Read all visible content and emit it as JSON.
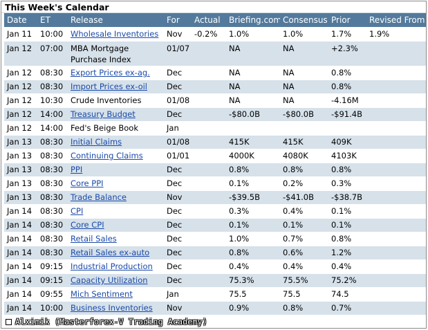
{
  "title": "This Week's Calendar",
  "columns": [
    "Date",
    "ET",
    "Release",
    "For",
    "Actual",
    "Briefing.com",
    "Consensus",
    "Prior",
    "Revised From"
  ],
  "rows": [
    {
      "date": "Jan 11",
      "et": "10:00",
      "release": "Wholesale Inventories",
      "link": true,
      "for": "Nov",
      "actual": "-0.2%",
      "briefing": "1.0%",
      "consensus": "1.0%",
      "prior": "1.7%",
      "revised": "1.9%"
    },
    {
      "date": "Jan 12",
      "et": "07:00",
      "release": "MBA Mortgage Purchase Index",
      "link": false,
      "for": "01/07",
      "actual": "",
      "briefing": "NA",
      "consensus": "NA",
      "prior": "+2.3%",
      "revised": ""
    },
    {
      "date": "Jan 12",
      "et": "08:30",
      "release": "Export Prices ex-ag.",
      "link": true,
      "for": "Dec",
      "actual": "",
      "briefing": "NA",
      "consensus": "NA",
      "prior": "0.8%",
      "revised": ""
    },
    {
      "date": "Jan 12",
      "et": "08:30",
      "release": "Import Prices ex-oil",
      "link": true,
      "for": "Dec",
      "actual": "",
      "briefing": "NA",
      "consensus": "NA",
      "prior": "0.8%",
      "revised": ""
    },
    {
      "date": "Jan 12",
      "et": "10:30",
      "release": "Crude Inventories",
      "link": false,
      "for": "01/08",
      "actual": "",
      "briefing": "NA",
      "consensus": "NA",
      "prior": "-4.16M",
      "revised": ""
    },
    {
      "date": "Jan 12",
      "et": "14:00",
      "release": "Treasury Budget",
      "link": true,
      "for": "Dec",
      "actual": "",
      "briefing": "-$80.0B",
      "consensus": "-$80.0B",
      "prior": "-$91.4B",
      "revised": ""
    },
    {
      "date": "Jan 12",
      "et": "14:00",
      "release": "Fed's Beige Book",
      "link": false,
      "for": "Jan",
      "actual": "",
      "briefing": "",
      "consensus": "",
      "prior": "",
      "revised": ""
    },
    {
      "date": "Jan 13",
      "et": "08:30",
      "release": "Initial Claims",
      "link": true,
      "for": "01/08",
      "actual": "",
      "briefing": "415K",
      "consensus": "415K",
      "prior": "409K",
      "revised": ""
    },
    {
      "date": "Jan 13",
      "et": "08:30",
      "release": "Continuing Claims",
      "link": true,
      "for": "01/01",
      "actual": "",
      "briefing": "4000K",
      "consensus": "4080K",
      "prior": "4103K",
      "revised": ""
    },
    {
      "date": "Jan 13",
      "et": "08:30",
      "release": "PPI",
      "link": true,
      "for": "Dec",
      "actual": "",
      "briefing": "0.8%",
      "consensus": "0.8%",
      "prior": "0.8%",
      "revised": ""
    },
    {
      "date": "Jan 13",
      "et": "08:30",
      "release": "Core PPI",
      "link": true,
      "for": "Dec",
      "actual": "",
      "briefing": "0.1%",
      "consensus": "0.2%",
      "prior": "0.3%",
      "revised": ""
    },
    {
      "date": "Jan 13",
      "et": "08:30",
      "release": "Trade Balance",
      "link": true,
      "for": "Nov",
      "actual": "",
      "briefing": "-$39.5B",
      "consensus": "-$41.0B",
      "prior": "-$38.7B",
      "revised": ""
    },
    {
      "date": "Jan 14",
      "et": "08:30",
      "release": "CPI",
      "link": true,
      "for": "Dec",
      "actual": "",
      "briefing": "0.3%",
      "consensus": "0.4%",
      "prior": "0.1%",
      "revised": ""
    },
    {
      "date": "Jan 14",
      "et": "08:30",
      "release": "Core CPI",
      "link": true,
      "for": "Dec",
      "actual": "",
      "briefing": "0.1%",
      "consensus": "0.1%",
      "prior": "0.1%",
      "revised": ""
    },
    {
      "date": "Jan 14",
      "et": "08:30",
      "release": "Retail Sales",
      "link": true,
      "for": "Dec",
      "actual": "",
      "briefing": "1.0%",
      "consensus": "0.7%",
      "prior": "0.8%",
      "revised": ""
    },
    {
      "date": "Jan 14",
      "et": "08:30",
      "release": "Retail Sales ex-auto",
      "link": true,
      "for": "Dec",
      "actual": "",
      "briefing": "0.8%",
      "consensus": "0.6%",
      "prior": "1.2%",
      "revised": ""
    },
    {
      "date": "Jan 14",
      "et": "09:15",
      "release": "Industrial Production",
      "link": true,
      "for": "Dec",
      "actual": "",
      "briefing": "0.4%",
      "consensus": "0.4%",
      "prior": "0.4%",
      "revised": ""
    },
    {
      "date": "Jan 14",
      "et": "09:15",
      "release": "Capacity Utilization",
      "link": true,
      "for": "Dec",
      "actual": "",
      "briefing": "75.3%",
      "consensus": "75.5%",
      "prior": "75.2%",
      "revised": ""
    },
    {
      "date": "Jan 14",
      "et": "09:55",
      "release": "Mich Sentiment",
      "link": true,
      "for": "Jan",
      "actual": "",
      "briefing": "75.5",
      "consensus": "75.5",
      "prior": "74.5",
      "revised": ""
    },
    {
      "date": "Jan 14",
      "et": "10:00",
      "release": "Business Inventories",
      "link": true,
      "for": "Nov",
      "actual": "",
      "briefing": "0.9%",
      "consensus": "0.8%",
      "prior": "0.7%",
      "revised": ""
    }
  ],
  "footer": "Alximik (Masterforex-V Trading Academy)",
  "colors": {
    "header_bg": "#537a9c",
    "stripe": "#d6e1ea",
    "link": "#1a4aa8"
  }
}
